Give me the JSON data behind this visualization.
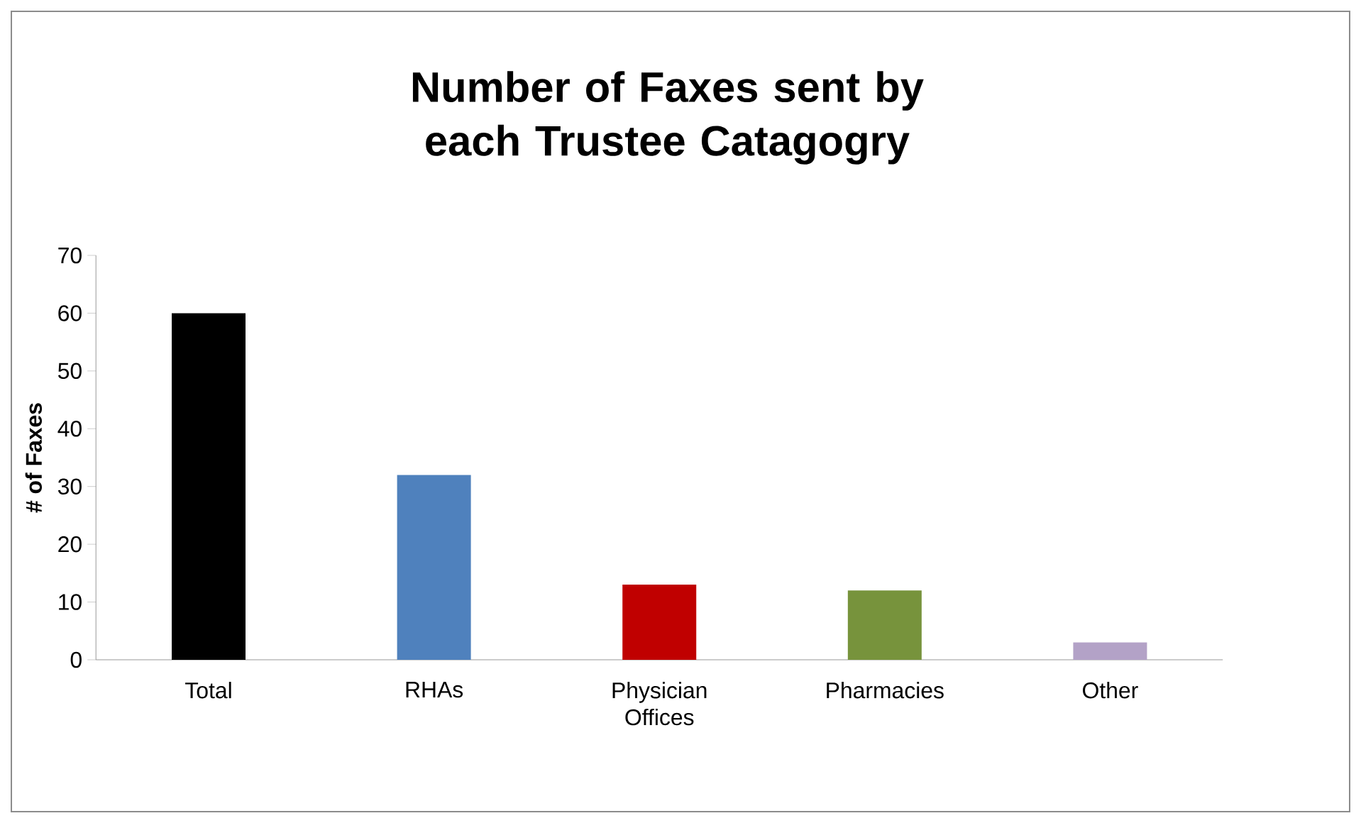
{
  "chart_data": {
    "type": "bar",
    "title": "Number of Faxes sent by each Trustee Catagogry",
    "ylabel": "# of Faxes",
    "categories": [
      "Total",
      "RHAs",
      "Physician Offices",
      "Pharmacies",
      "Other"
    ],
    "values": [
      60,
      32,
      13,
      12,
      3
    ],
    "colors": [
      "#000000",
      "#4f81bd",
      "#c00000",
      "#77933c",
      "#b3a2c7"
    ],
    "ylim": [
      0,
      70
    ],
    "yticks": [
      0,
      10,
      20,
      30,
      40,
      50,
      60,
      70
    ],
    "grid": false
  }
}
